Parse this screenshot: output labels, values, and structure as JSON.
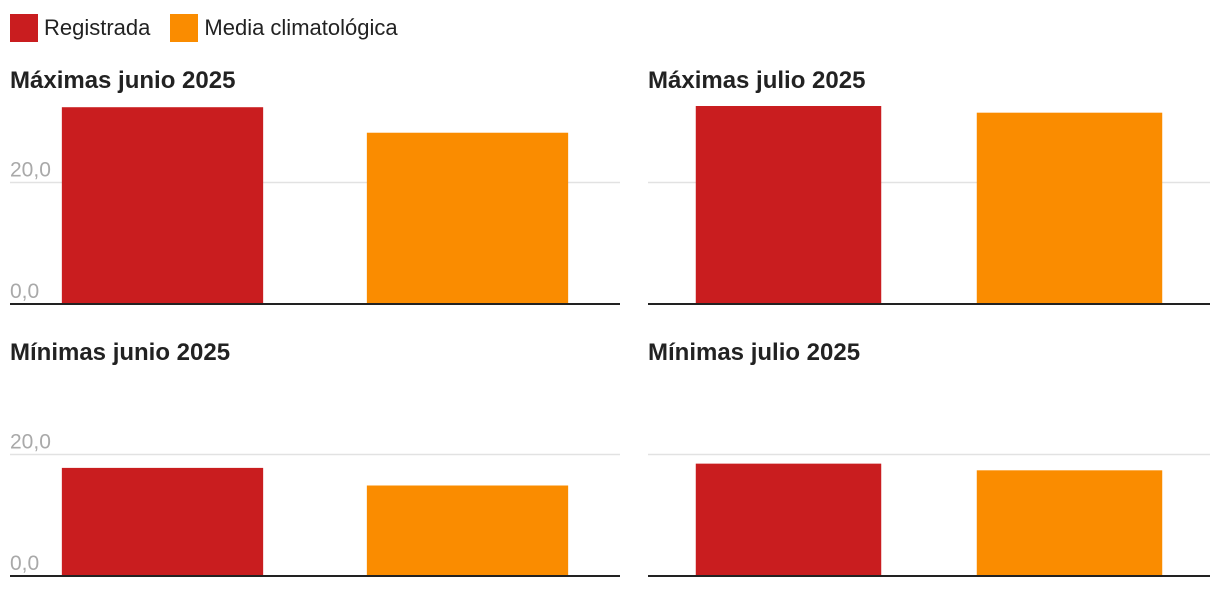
{
  "legend": [
    {
      "label": "Registrada",
      "color": "#c91d1f"
    },
    {
      "label": "Media climatológica",
      "color": "#fa8c00"
    }
  ],
  "chart_data": [
    {
      "type": "bar",
      "title": "Máximas junio 2025",
      "categories": [
        "Registrada",
        "Media climatológica"
      ],
      "values": [
        32.4,
        28.2
      ],
      "colors": [
        "#c91d1f",
        "#fa8c00"
      ],
      "ylim": [
        0,
        32.6
      ],
      "yticks": [
        0,
        20
      ],
      "ytick_labels": [
        "0,0",
        "20,0"
      ],
      "grid": true
    },
    {
      "type": "bar",
      "title": "Máximas julio 2025",
      "categories": [
        "Registrada",
        "Media climatológica"
      ],
      "values": [
        32.6,
        31.5
      ],
      "colors": [
        "#c91d1f",
        "#fa8c00"
      ],
      "ylim": [
        0,
        32.6
      ],
      "yticks": [
        0,
        20
      ],
      "ytick_labels": [
        "",
        ""
      ],
      "grid": true
    },
    {
      "type": "bar",
      "title": "Mínimas junio 2025",
      "categories": [
        "Registrada",
        "Media climatológica"
      ],
      "values": [
        17.8,
        14.9
      ],
      "colors": [
        "#c91d1f",
        "#fa8c00"
      ],
      "ylim": [
        0,
        32.6
      ],
      "yticks": [
        0,
        20
      ],
      "ytick_labels": [
        "0,0",
        "20,0"
      ],
      "grid": true
    },
    {
      "type": "bar",
      "title": "Mínimas julio 2025",
      "categories": [
        "Registrada",
        "Media climatológica"
      ],
      "values": [
        18.5,
        17.4
      ],
      "colors": [
        "#c91d1f",
        "#fa8c00"
      ],
      "ylim": [
        0,
        32.6
      ],
      "yticks": [
        0,
        20
      ],
      "ytick_labels": [
        "",
        ""
      ],
      "grid": true
    }
  ]
}
